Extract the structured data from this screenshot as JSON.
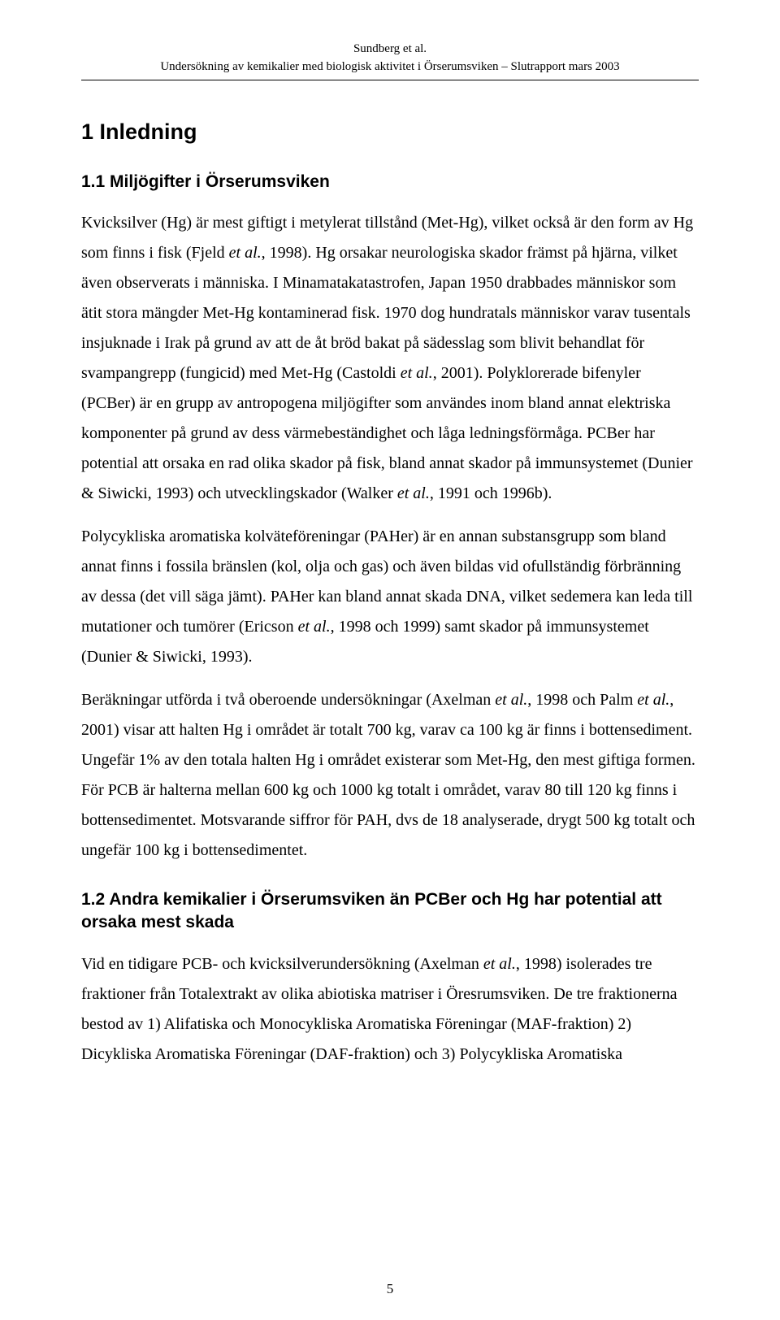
{
  "header": {
    "author_line": "Sundberg et al.",
    "subtitle": "Undersökning av kemikalier med biologisk aktivitet i Örserumsviken – Slutrapport mars 2003"
  },
  "section1": {
    "heading": "1 Inledning",
    "sub1": {
      "heading": "1.1 Miljögifter i Örserumsviken",
      "p1a": "Kvicksilver (Hg) är mest giftigt i metylerat tillstånd (Met-Hg), vilket också är den form av Hg som finns i fisk (Fjeld ",
      "p1a_it": "et al.",
      "p1b": ", 1998). Hg orsakar neurologiska skador främst på hjärna, vilket även observerats i människa. I Minamatakatastrofen, Japan 1950 drabbades människor som ätit stora mängder Met-Hg kontaminerad fisk. 1970 dog hundratals människor varav tusentals insjuknade i Irak på grund av att de åt bröd bakat på sädesslag som blivit behandlat för svampangrepp (fungicid) med Met-Hg (Castoldi ",
      "p1b_it": "et al.",
      "p1c": ", 2001). Polyklorerade bifenyler (PCBer) är en grupp av antropogena miljögifter som användes inom bland annat elektriska komponenter på grund av dess värmebeständighet och låga ledningsförmåga. PCBer har potential att orsaka en rad olika skador på fisk, bland annat skador på immunsystemet (Dunier & Siwicki, 1993) och utvecklingskador (Walker ",
      "p1c_it": "et al.",
      "p1d": ", 1991 och 1996b).",
      "p2a": "Polycykliska aromatiska kolväteföreningar (PAHer) är en annan substansgrupp som bland annat finns i fossila bränslen (kol, olja och gas) och även bildas vid ofullständig förbränning av dessa (det vill säga jämt). PAHer kan bland annat skada DNA, vilket sedemera kan leda till mutationer och tumörer (Ericson ",
      "p2a_it": "et al.",
      "p2b": ", 1998 och 1999) samt skador på immunsystemet (Dunier & Siwicki, 1993).",
      "p3a": "Beräkningar utförda i två oberoende undersökningar (Axelman ",
      "p3a_it": "et al.",
      "p3b": ", 1998 och Palm ",
      "p3b_it": "et al.",
      "p3c": ", 2001) visar att halten Hg i området är totalt 700 kg, varav ca 100 kg är finns i bottensediment. Ungefär 1% av den totala halten Hg i området existerar som Met-Hg, den mest giftiga formen. För PCB är halterna mellan 600 kg och 1000 kg totalt i området, varav 80 till 120 kg finns i bottensedimentet. Motsvarande siffror för PAH, dvs de 18 analyserade, drygt 500 kg totalt och ungefär 100 kg i bottensedimentet."
    },
    "sub2": {
      "heading": "1.2 Andra kemikalier i Örserumsviken än PCBer och Hg har potential att orsaka mest skada",
      "p1a": "Vid en tidigare PCB- och kvicksilverundersökning (Axelman ",
      "p1a_it": "et al.",
      "p1b": ", 1998) isolerades tre fraktioner från Totalextrakt av olika abiotiska matriser i Öresrumsviken. De tre fraktionerna bestod av 1) Alifatiska och Monocykliska Aromatiska Föreningar (MAF-fraktion) 2) Dicykliska Aromatiska Föreningar (DAF-fraktion) och 3) Polycykliska Aromatiska"
    }
  },
  "page_number": "5"
}
